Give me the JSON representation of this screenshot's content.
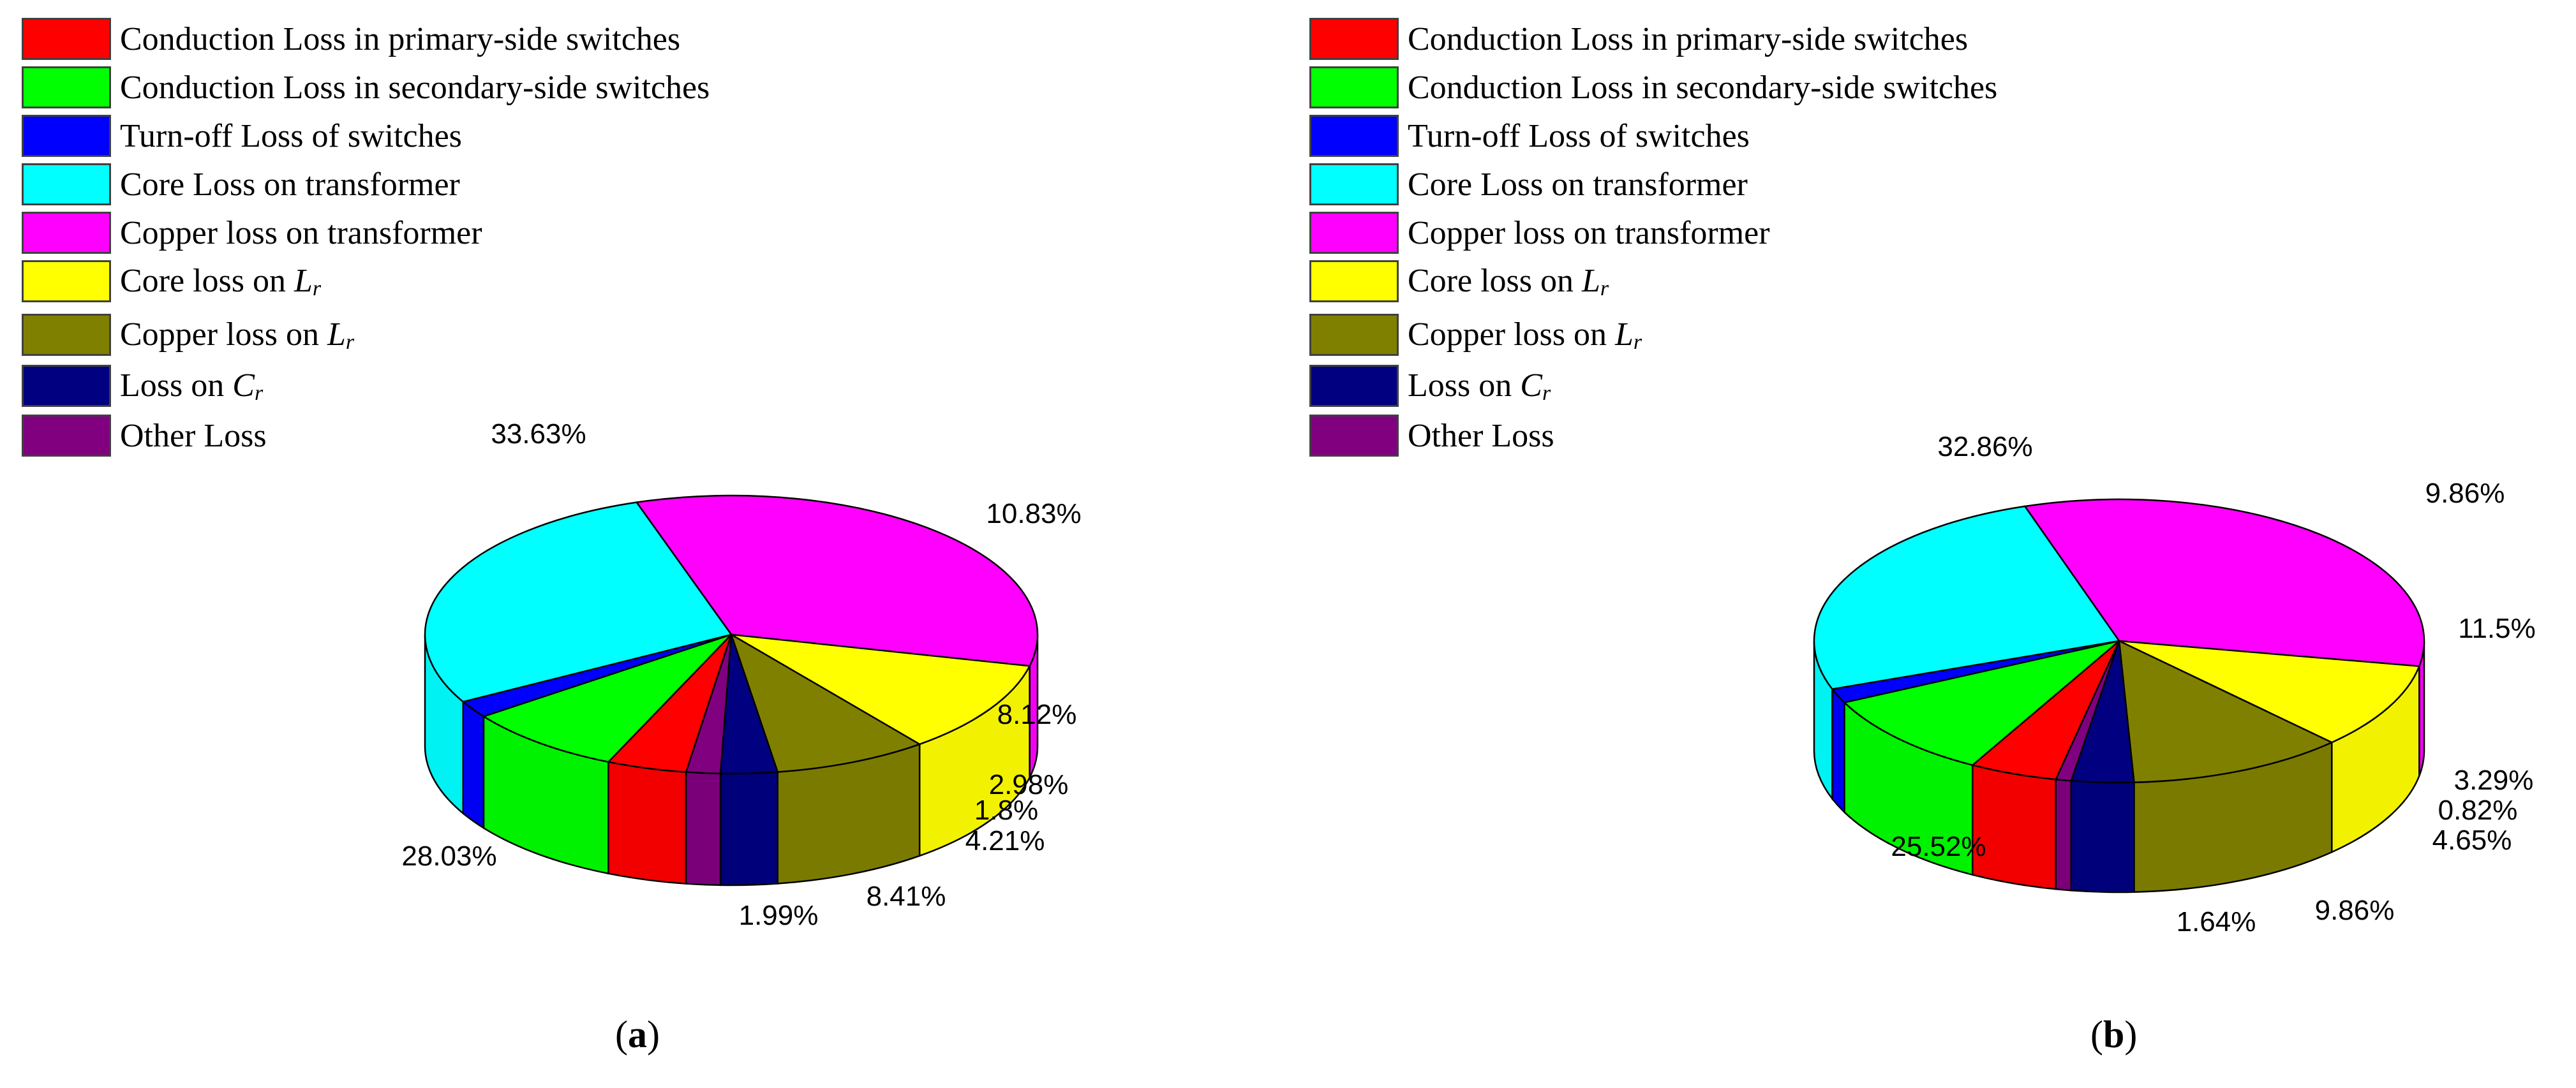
{
  "legend": {
    "items": [
      {
        "key": "cond_primary",
        "label": "Conduction Loss in primary-side switches",
        "color": "#ff0000"
      },
      {
        "key": "cond_secondary",
        "label": "Conduction Loss in secondary-side switches",
        "color": "#00ff00"
      },
      {
        "key": "turnoff",
        "label": "Turn-off Loss of switches",
        "color": "#0000ff"
      },
      {
        "key": "core_tx",
        "label": "Core Loss on transformer",
        "color": "#00ffff"
      },
      {
        "key": "copper_tx",
        "label": "Copper loss on transformer",
        "color": "#ff00ff"
      },
      {
        "key": "core_lr",
        "label": "Core loss on ",
        "sym": "L",
        "sub": "r",
        "color": "#ffff00"
      },
      {
        "key": "copper_lr",
        "label": "Copper loss on ",
        "sym": "L",
        "sub": "r",
        "color": "#808000"
      },
      {
        "key": "loss_cr",
        "label": "Loss on ",
        "sym": "C",
        "sub": "r",
        "color": "#000080"
      },
      {
        "key": "other",
        "label": "Other Loss",
        "color": "#800080"
      }
    ]
  },
  "chart_data": [
    {
      "type": "pie",
      "caption": "(a)",
      "caption_letter": "a",
      "slices": [
        {
          "key": "copper_tx",
          "value": 33.63,
          "label": "33.63%"
        },
        {
          "key": "core_lr",
          "value": 10.83,
          "label": "10.83%"
        },
        {
          "key": "copper_lr",
          "value": 8.12,
          "label": "8.12%"
        },
        {
          "key": "loss_cr",
          "value": 2.98,
          "label": "2.98%"
        },
        {
          "key": "other",
          "value": 1.8,
          "label": "1.8%"
        },
        {
          "key": "cond_primary",
          "value": 4.21,
          "label": "4.21%"
        },
        {
          "key": "cond_secondary",
          "value": 8.41,
          "label": "8.41%"
        },
        {
          "key": "turnoff",
          "value": 1.99,
          "label": "1.99%"
        },
        {
          "key": "core_tx",
          "value": 28.03,
          "label": "28.03%"
        }
      ]
    },
    {
      "type": "pie",
      "caption": "(b)",
      "caption_letter": "b",
      "slices": [
        {
          "key": "copper_tx",
          "value": 32.86,
          "label": "32.86%"
        },
        {
          "key": "core_lr",
          "value": 9.86,
          "label": "9.86%"
        },
        {
          "key": "copper_lr",
          "value": 11.5,
          "label": "11.5%"
        },
        {
          "key": "loss_cr",
          "value": 3.29,
          "label": "3.29%"
        },
        {
          "key": "other",
          "value": 0.82,
          "label": "0.82%"
        },
        {
          "key": "cond_primary",
          "value": 4.65,
          "label": "4.65%"
        },
        {
          "key": "cond_secondary",
          "value": 9.86,
          "label": "9.86%"
        },
        {
          "key": "turnoff",
          "value": 1.64,
          "label": "1.64%"
        },
        {
          "key": "core_tx",
          "value": 25.52,
          "label": "25.52%"
        }
      ]
    }
  ]
}
